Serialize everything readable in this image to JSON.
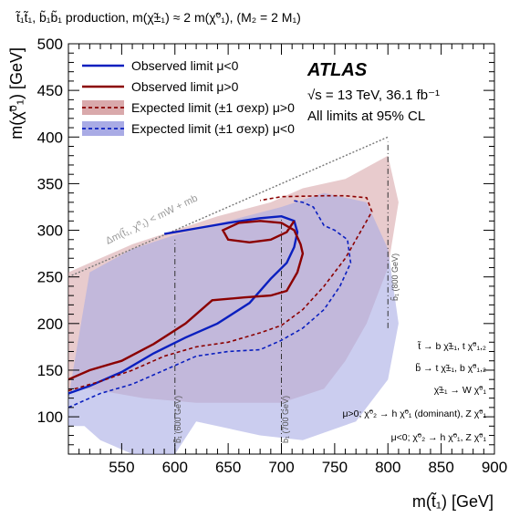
{
  "header": {
    "title": "t̃₁t̃₁, b̃₁b̃₁ production, m(χ̃±₁) ≈ 2 m(χ̃⁰₁), (M₂ = 2 M₁)"
  },
  "atlas": {
    "logo": "ATLAS",
    "energy": "√s = 13 TeV, 36.1 fb⁻¹",
    "cl_note": "All limits at 95% CL"
  },
  "legend": {
    "items": [
      {
        "label": "Observed limit  μ<0",
        "color": "#0a1fbf",
        "style": "solid"
      },
      {
        "label": "Observed limit  μ>0",
        "color": "#8b0000",
        "style": "solid"
      },
      {
        "label": "Expected limit (±1 σexp) μ>0",
        "color": "#8b0000",
        "style": "dashed",
        "band": "#d9a9ab"
      },
      {
        "label": "Expected limit (±1 σexp) μ<0",
        "color": "#0a1fbf",
        "style": "dashed",
        "band": "#a9abe5"
      }
    ]
  },
  "annotations": {
    "kinematic": "Δm(t̃₁, χ̃⁰₁) < mW + mb",
    "b600": "b̃₁ (600 GeV)",
    "b700": "b̃₁ (700 GeV)",
    "b800": "b̃₁ (800 GeV)",
    "decays": [
      "t̃ → b χ̃±₁, t χ̃⁰₁,₂",
      "b̃ → t χ̃±₁, b χ̃⁰₁,₂",
      "χ̃±₁ → W χ̃⁰₁",
      "μ>0; χ̃⁰₂ → h χ̃⁰₁ (dominant), Z χ̃⁰₁",
      "μ<0; χ̃⁰₂ → h χ̃⁰₁, Z χ̃⁰₁"
    ]
  },
  "chart_data": {
    "type": "line",
    "xlabel": "m(t̃₁) [GeV]",
    "ylabel": "m(χ̃⁰₁) [GeV]",
    "xlim": [
      500,
      900
    ],
    "ylim": [
      60,
      500
    ],
    "xticks": [
      550,
      600,
      650,
      700,
      750,
      800,
      850,
      900
    ],
    "yticks": [
      100,
      150,
      200,
      250,
      300,
      350,
      400,
      450,
      500
    ],
    "kinematic_limit": {
      "x": [
        500,
        800
      ],
      "y": [
        250,
        400
      ]
    },
    "sbottom_lines": [
      {
        "x": 600,
        "y": [
          60,
          290
        ],
        "label": "b̃₁ (600 GeV)"
      },
      {
        "x": 700,
        "y": [
          60,
          315
        ],
        "label": "b̃₁ (700 GeV)"
      },
      {
        "x": 800,
        "y": [
          195,
          395
        ],
        "label": "b̃₁ (800 GeV)"
      }
    ],
    "series": [
      {
        "name": "Expected limit (±1 σexp) μ>0 band",
        "kind": "band",
        "color": "#d9a9ab",
        "x": [
          500,
          560,
          600,
          640,
          690,
          720,
          760,
          800,
          810,
          800,
          780,
          760,
          740,
          700,
          620,
          570,
          520,
          500
        ],
        "y": [
          255,
          285,
          300,
          315,
          330,
          345,
          355,
          380,
          330,
          260,
          200,
          160,
          130,
          115,
          115,
          120,
          130,
          130
        ]
      },
      {
        "name": "Expected limit (±1 σexp) μ<0 band",
        "kind": "band",
        "color": "#a9abe5",
        "x": [
          520,
          560,
          600,
          650,
          700,
          740,
          780,
          800,
          810,
          800,
          770,
          720,
          680,
          620,
          600,
          560,
          530,
          515,
          500,
          500
        ],
        "y": [
          255,
          280,
          295,
          310,
          325,
          340,
          330,
          280,
          200,
          140,
          95,
          75,
          80,
          95,
          60,
          60,
          75,
          90,
          90,
          120
        ]
      },
      {
        "name": "Observed limit μ<0",
        "kind": "line",
        "color": "#0a1fbf",
        "dash": "solid",
        "x": [
          500,
          520,
          550,
          580,
          610,
          640,
          670,
          690,
          705,
          712,
          715,
          712,
          700,
          680,
          650,
          620,
          600,
          590
        ],
        "y": [
          125,
          133,
          148,
          168,
          185,
          200,
          222,
          248,
          265,
          282,
          298,
          310,
          315,
          313,
          308,
          302,
          298,
          296
        ]
      },
      {
        "name": "Observed limit μ>0",
        "kind": "line",
        "color": "#8b0000",
        "dash": "solid",
        "x": [
          500,
          520,
          550,
          580,
          610,
          635,
          665,
          690,
          705,
          715,
          720,
          718,
          712,
          700,
          680,
          660,
          645,
          650,
          670,
          690,
          705,
          712
        ],
        "y": [
          140,
          150,
          160,
          178,
          200,
          225,
          228,
          230,
          235,
          255,
          275,
          285,
          300,
          308,
          310,
          308,
          300,
          290,
          287,
          290,
          298,
          310
        ]
      },
      {
        "name": "Expected limit μ>0",
        "kind": "line",
        "color": "#8b0000",
        "dash": "dashed",
        "x": [
          500,
          530,
          560,
          590,
          620,
          650,
          680,
          700,
          720,
          740,
          760,
          775,
          780,
          785,
          780,
          760,
          740,
          700,
          680
        ],
        "y": [
          128,
          138,
          150,
          165,
          175,
          180,
          190,
          198,
          215,
          240,
          270,
          300,
          310,
          320,
          335,
          337,
          337,
          336,
          332
        ]
      },
      {
        "name": "Expected limit μ<0",
        "kind": "line",
        "color": "#0a1fbf",
        "dash": "dashed",
        "x": [
          500,
          530,
          560,
          590,
          620,
          650,
          680,
          700,
          720,
          740,
          755,
          765,
          762,
          750,
          740,
          730,
          720,
          710
        ],
        "y": [
          110,
          125,
          135,
          150,
          165,
          170,
          172,
          182,
          195,
          215,
          240,
          265,
          290,
          300,
          305,
          325,
          330,
          332
        ]
      }
    ]
  }
}
